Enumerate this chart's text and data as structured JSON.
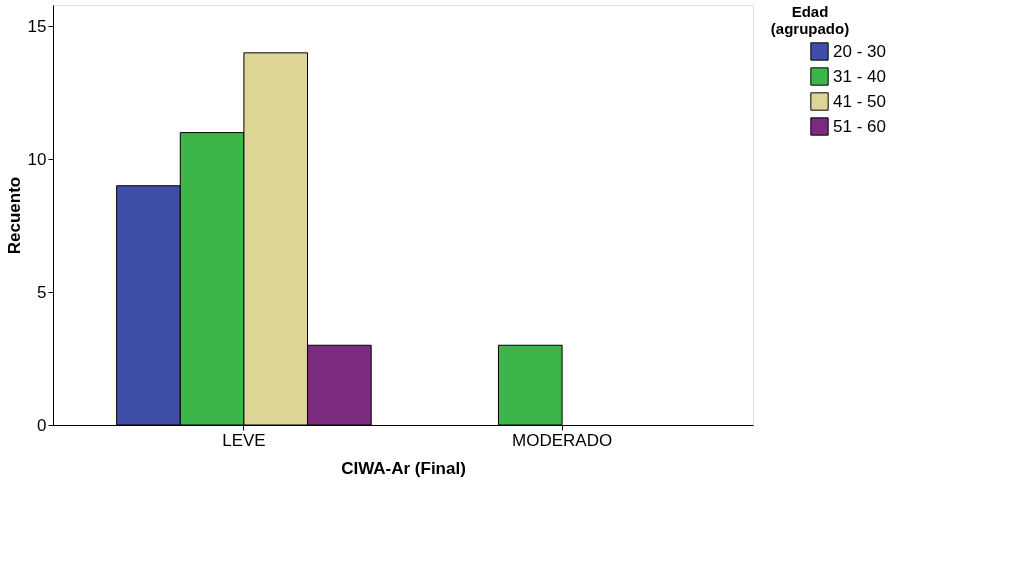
{
  "chart_data": {
    "type": "bar",
    "xlabel": "CIWA-Ar (Final)",
    "ylabel": "Recuento",
    "legend_title": "Edad (agrupado)",
    "categories": [
      "LEVE",
      "MODERADO"
    ],
    "series": [
      {
        "name": "20 - 30",
        "color": "#3f4fa8",
        "values": [
          9,
          null
        ]
      },
      {
        "name": "31 - 40",
        "color": "#3cb54a",
        "values": [
          11,
          3
        ]
      },
      {
        "name": "41 - 50",
        "color": "#dcd595",
        "values": [
          14,
          null
        ]
      },
      {
        "name": "51 - 60",
        "color": "#7a2b7f",
        "values": [
          3,
          null
        ]
      }
    ],
    "ylim": [
      0,
      15.8
    ],
    "yticks": [
      0,
      5,
      10,
      15
    ],
    "grid": false,
    "legend": "top right"
  }
}
